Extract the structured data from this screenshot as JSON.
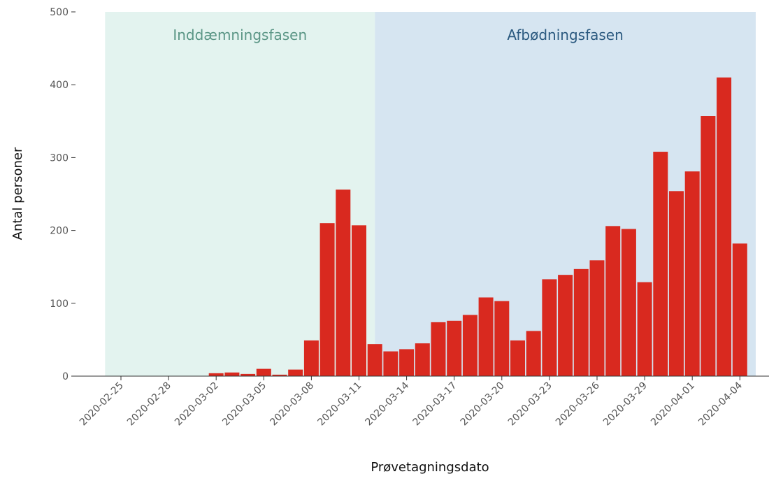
{
  "chart_data": {
    "type": "bar",
    "x_label": "Prøvetagningsdato",
    "y_label": "Antal personer",
    "phases": [
      {
        "label": "Inddæmningsfasen",
        "color": "#e3f3ef",
        "text_color": "#5b9686"
      },
      {
        "label": "Afbødningsfasen",
        "color": "#d6e5f1",
        "text_color": "#2c5a80"
      }
    ],
    "categories": [
      "2020-02-25",
      null,
      null,
      "2020-02-28",
      null,
      null,
      "2020-03-02",
      null,
      null,
      "2020-03-05",
      null,
      null,
      "2020-03-08",
      null,
      null,
      "2020-03-11",
      null,
      null,
      "2020-03-14",
      null,
      null,
      "2020-03-17",
      null,
      null,
      "2020-03-20",
      null,
      null,
      "2020-03-23",
      null,
      null,
      "2020-03-26",
      null,
      null,
      "2020-03-29",
      null,
      null,
      "2020-04-01",
      null,
      null,
      "2020-04-04"
    ],
    "values": [
      0,
      0,
      0,
      0,
      0,
      0,
      4,
      5,
      3,
      10,
      2,
      9,
      49,
      210,
      256,
      207,
      44,
      34,
      37,
      45,
      74,
      76,
      84,
      108,
      103,
      49,
      62,
      133,
      139,
      147,
      159,
      206,
      202,
      129,
      308,
      254,
      281,
      357,
      410,
      182
    ],
    "color": "#d9291f",
    "ylim": [
      0,
      500
    ],
    "yticks": [
      0,
      100,
      200,
      300,
      400,
      500
    ]
  }
}
